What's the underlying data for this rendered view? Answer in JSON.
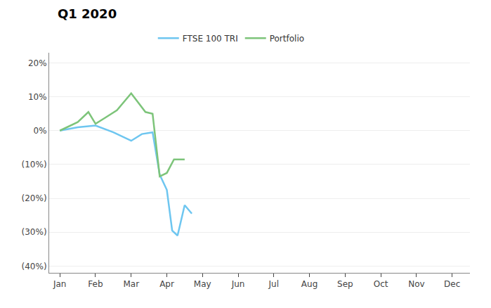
{
  "chart_data": {
    "type": "line",
    "title": "Q1 2020",
    "series": [
      {
        "name": "FTSE 100 TRI",
        "color": "#6EC6F0",
        "x": [
          0,
          0.5,
          1.0,
          1.5,
          2.0,
          2.3,
          2.6,
          2.8,
          3.0,
          3.15,
          3.3,
          3.5,
          3.7
        ],
        "values": [
          0.0,
          0.01,
          0.015,
          -0.005,
          -0.03,
          -0.01,
          -0.005,
          -0.13,
          -0.175,
          -0.295,
          -0.31,
          -0.22,
          -0.245
        ]
      },
      {
        "name": "Portfolio",
        "color": "#7DC47A",
        "x": [
          0,
          0.3,
          0.5,
          0.8,
          1.0,
          1.3,
          1.6,
          2.0,
          2.4,
          2.6,
          2.8,
          3.0,
          3.2,
          3.5
        ],
        "values": [
          0.0,
          0.015,
          0.025,
          0.055,
          0.02,
          0.04,
          0.06,
          0.11,
          0.055,
          0.05,
          -0.135,
          -0.125,
          -0.085,
          -0.085
        ]
      }
    ],
    "xlim": [
      -0.3,
      11.5
    ],
    "xticks": [
      {
        "value": 0,
        "label": "Jan"
      },
      {
        "value": 1,
        "label": "Feb"
      },
      {
        "value": 2,
        "label": "Mar"
      },
      {
        "value": 3,
        "label": "Apr"
      },
      {
        "value": 4,
        "label": "May"
      },
      {
        "value": 5,
        "label": "Jun"
      },
      {
        "value": 6,
        "label": "Jul"
      },
      {
        "value": 7,
        "label": "Aug"
      },
      {
        "value": 8,
        "label": "Sep"
      },
      {
        "value": 9,
        "label": "Oct"
      },
      {
        "value": 10,
        "label": "Nov"
      },
      {
        "value": 11,
        "label": "Dec"
      }
    ],
    "ylim": [
      -0.42,
      0.23
    ],
    "yticks": [
      {
        "value": 0.2,
        "label": "20%"
      },
      {
        "value": 0.1,
        "label": "10%"
      },
      {
        "value": 0.0,
        "label": "0%"
      },
      {
        "value": -0.1,
        "label": "(10%)"
      },
      {
        "value": -0.2,
        "label": "(20%)"
      },
      {
        "value": -0.3,
        "label": "(30%)"
      },
      {
        "value": -0.4,
        "label": "(40%)"
      }
    ],
    "grid": "y",
    "legend": "top"
  }
}
